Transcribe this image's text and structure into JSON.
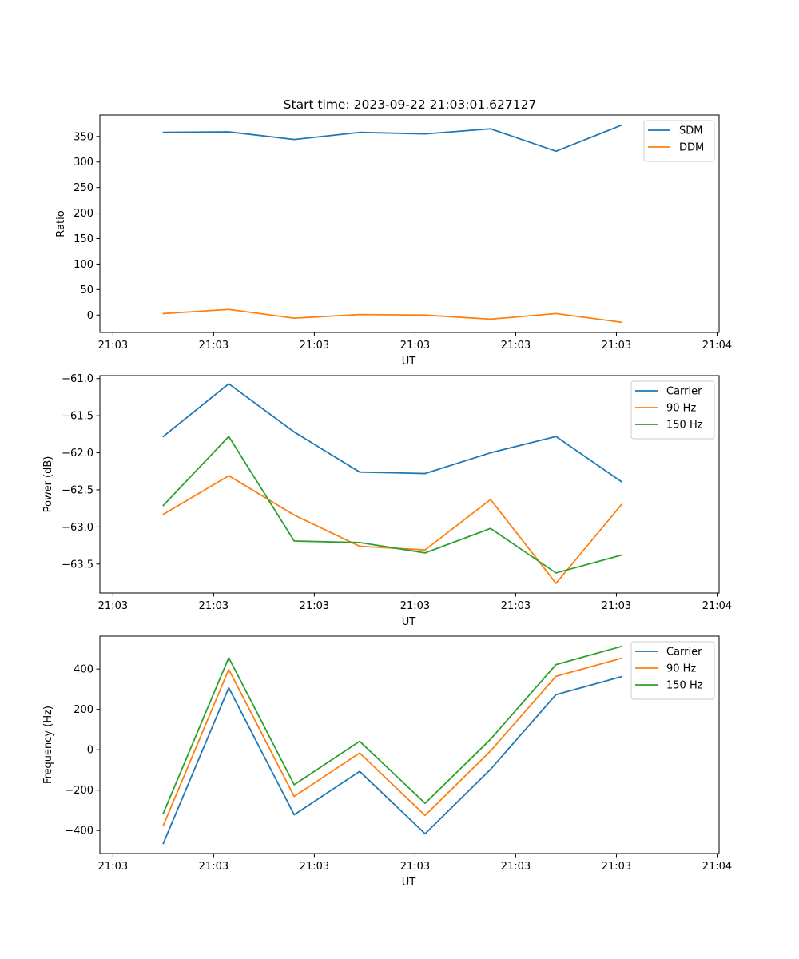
{
  "title": "Start time: 2023-09-22 21:03:01.627127",
  "colors": {
    "blue": "#1f77b4",
    "orange": "#ff7f0e",
    "green": "#2ca02c"
  },
  "chart_data": [
    {
      "type": "line",
      "title": "Start time: 2023-09-22 21:03:01.627127",
      "xlabel": "UT",
      "ylabel": "Ratio",
      "x": [
        0.5,
        1.15,
        1.8,
        2.45,
        3.1,
        3.75,
        4.4,
        5.05
      ],
      "x_ticks": [
        0,
        1,
        2,
        3,
        4,
        5,
        6
      ],
      "x_tick_labels": [
        "21:03",
        "21:03",
        "21:03",
        "21:03",
        "21:03",
        "21:03",
        "21:04"
      ],
      "xlim": [
        -0.13,
        6.02
      ],
      "ylim": [
        -34,
        392
      ],
      "y_ticks": [
        0,
        50,
        100,
        150,
        200,
        250,
        300,
        350
      ],
      "y_tick_labels": [
        "0",
        "50",
        "100",
        "150",
        "200",
        "250",
        "300",
        "350"
      ],
      "legend_position": "top-right",
      "series": [
        {
          "name": "SDM",
          "color": "#1f77b4",
          "values": [
            358,
            359,
            344,
            358,
            355,
            365,
            321,
            372
          ]
        },
        {
          "name": "DDM",
          "color": "#ff7f0e",
          "values": [
            3,
            11,
            -6,
            1,
            0,
            -8,
            3,
            -14
          ]
        }
      ]
    },
    {
      "type": "line",
      "title": "",
      "xlabel": "UT",
      "ylabel": "Power (dB)",
      "x": [
        0.5,
        1.15,
        1.8,
        2.45,
        3.1,
        3.75,
        4.4,
        5.05
      ],
      "x_ticks": [
        0,
        1,
        2,
        3,
        4,
        5,
        6
      ],
      "x_tick_labels": [
        "21:03",
        "21:03",
        "21:03",
        "21:03",
        "21:03",
        "21:03",
        "21:04"
      ],
      "xlim": [
        -0.13,
        6.02
      ],
      "ylim": [
        -63.89,
        -60.96
      ],
      "y_ticks": [
        -63.5,
        -63.0,
        -62.5,
        -62.0,
        -61.5,
        -61.0
      ],
      "y_tick_labels": [
        "−63.5",
        "−63.0",
        "−62.5",
        "−62.0",
        "−61.5",
        "−61.0"
      ],
      "legend_position": "top-right",
      "series": [
        {
          "name": "Carrier",
          "color": "#1f77b4",
          "values": [
            -61.78,
            -61.07,
            -61.72,
            -62.26,
            -62.28,
            -62.0,
            -61.78,
            -62.39
          ]
        },
        {
          "name": "90 Hz",
          "color": "#ff7f0e",
          "values": [
            -62.83,
            -62.31,
            -62.84,
            -63.26,
            -63.31,
            -62.63,
            -63.76,
            -62.7
          ]
        },
        {
          "name": "150 Hz",
          "color": "#2ca02c",
          "values": [
            -62.71,
            -61.78,
            -63.19,
            -63.21,
            -63.35,
            -63.02,
            -63.62,
            -63.38
          ]
        }
      ]
    },
    {
      "type": "line",
      "title": "",
      "xlabel": "UT",
      "ylabel": "Frequency (Hz)",
      "x": [
        0.5,
        1.15,
        1.8,
        2.45,
        3.1,
        3.75,
        4.4,
        5.05
      ],
      "x_ticks": [
        0,
        1,
        2,
        3,
        4,
        5,
        6
      ],
      "x_tick_labels": [
        "21:03",
        "21:03",
        "21:03",
        "21:03",
        "21:03",
        "21:03",
        "21:04"
      ],
      "xlim": [
        -0.13,
        6.02
      ],
      "ylim": [
        -514,
        563
      ],
      "y_ticks": [
        -400,
        -200,
        0,
        200,
        400
      ],
      "y_tick_labels": [
        "−400",
        "−200",
        "0",
        "200",
        "400"
      ],
      "legend_position": "top-right",
      "series": [
        {
          "name": "Carrier",
          "color": "#1f77b4",
          "values": [
            -464,
            307,
            -322,
            -107,
            -416,
            -97,
            273,
            362
          ]
        },
        {
          "name": "90 Hz",
          "color": "#ff7f0e",
          "values": [
            -375,
            398,
            -231,
            -16,
            -325,
            -6,
            364,
            453
          ]
        },
        {
          "name": "150 Hz",
          "color": "#2ca02c",
          "values": [
            -315,
            456,
            -173,
            42,
            -265,
            52,
            422,
            512
          ]
        }
      ]
    }
  ]
}
